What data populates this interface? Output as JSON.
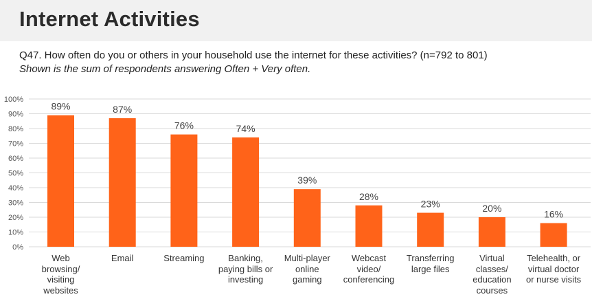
{
  "page": {
    "title": "Internet Activities",
    "question": "Q47. How often do you or others in your household use the internet for these activities? (n=792 to 801)",
    "note": "Shown is the sum of respondents answering Often + Very often."
  },
  "chart_data": {
    "type": "bar",
    "categories": [
      "Web browsing/ visiting websites",
      "Email",
      "Streaming",
      "Banking, paying bills or investing",
      "Multi-player online gaming",
      "Webcast video/ conferencing",
      "Transferring large files",
      "Virtual classes/ education courses",
      "Telehealth, or virtual doctor or nurse visits"
    ],
    "category_lines": [
      [
        "Web",
        "browsing/",
        "visiting",
        "websites"
      ],
      [
        "Email"
      ],
      [
        "Streaming"
      ],
      [
        "Banking,",
        "paying bills or",
        "investing"
      ],
      [
        "Multi-player",
        "online",
        "gaming"
      ],
      [
        "Webcast",
        "video/",
        "conferencing"
      ],
      [
        "Transferring",
        "large files"
      ],
      [
        "Virtual",
        "classes/",
        "education",
        "courses"
      ],
      [
        "Telehealth, or",
        "virtual doctor",
        "or nurse visits"
      ]
    ],
    "values": [
      89,
      87,
      76,
      74,
      39,
      28,
      23,
      20,
      16
    ],
    "data_labels": [
      "89%",
      "87%",
      "76%",
      "74%",
      "39%",
      "28%",
      "23%",
      "20%",
      "16%"
    ],
    "ylim": [
      0,
      100
    ],
    "yticks": [
      0,
      10,
      20,
      30,
      40,
      50,
      60,
      70,
      80,
      90,
      100
    ],
    "ytick_labels": [
      "0%",
      "10%",
      "20%",
      "30%",
      "40%",
      "50%",
      "60%",
      "70%",
      "80%",
      "90%",
      "100%"
    ],
    "grid": true,
    "bar_color": "#ff6319",
    "grid_color": "#d9d9d9"
  }
}
